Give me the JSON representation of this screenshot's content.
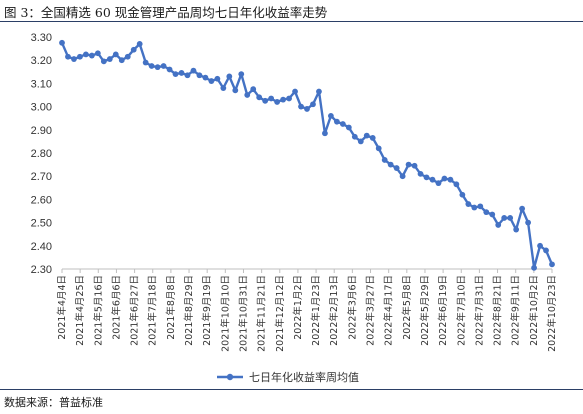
{
  "header": {
    "title": "图 3：全国精选 60 现金管理产品周均七日年化收益率走势"
  },
  "footer": {
    "source": "数据来源：普益标准"
  },
  "colors": {
    "series": "#4472C4",
    "rule": "#2b3f66",
    "axis": "#bfbfbf"
  },
  "chart_data": {
    "type": "line",
    "title": "",
    "xlabel": "",
    "ylabel": "",
    "ylim": [
      2.3,
      3.3
    ],
    "yticks": [
      2.3,
      2.4,
      2.5,
      2.6,
      2.7,
      2.8,
      2.9,
      3.0,
      3.1,
      3.2,
      3.3
    ],
    "ytick_labels": [
      "2.30",
      "2.40",
      "2.50",
      "2.60",
      "2.70",
      "2.80",
      "2.90",
      "3.00",
      "3.10",
      "3.20",
      "3.30"
    ],
    "grid": false,
    "legend_position": "bottom",
    "x_tick_labels": [
      "2021年4月4日",
      "2021年4月25日",
      "2021年5月16日",
      "2021年6月6日",
      "2021年6月27日",
      "2021年7月18日",
      "2021年8月8日",
      "2021年8月29日",
      "2021年9月19日",
      "2021年10月10日",
      "2021年10月31日",
      "2021年11月21日",
      "2021年12月12日",
      "2022年1月2日",
      "2022年1月23日",
      "2022年2月13日",
      "2022年3月6日",
      "2022年3月27日",
      "2022年4月17日",
      "2022年5月8日",
      "2022年5月29日",
      "2022年6月19日",
      "2022年7月10日",
      "2022年7月31日",
      "2022年8月21日",
      "2022年9月11日",
      "2022年10月2日",
      "2022年10月23日"
    ],
    "series": [
      {
        "name": "七日年化收益率周均值",
        "color": "#4472C4",
        "values": [
          3.275,
          3.215,
          3.205,
          3.215,
          3.225,
          3.22,
          3.23,
          3.195,
          3.205,
          3.225,
          3.2,
          3.215,
          3.245,
          3.27,
          3.19,
          3.175,
          3.17,
          3.175,
          3.16,
          3.14,
          3.145,
          3.135,
          3.155,
          3.135,
          3.125,
          3.11,
          3.12,
          3.08,
          3.13,
          3.07,
          3.14,
          3.05,
          3.075,
          3.04,
          3.025,
          3.035,
          3.02,
          3.03,
          3.035,
          3.065,
          3.0,
          2.99,
          3.01,
          3.065,
          2.885,
          2.96,
          2.935,
          2.925,
          2.91,
          2.87,
          2.85,
          2.875,
          2.865,
          2.82,
          2.77,
          2.75,
          2.735,
          2.7,
          2.75,
          2.745,
          2.71,
          2.695,
          2.685,
          2.67,
          2.69,
          2.685,
          2.665,
          2.62,
          2.58,
          2.565,
          2.57,
          2.545,
          2.535,
          2.49,
          2.52,
          2.52,
          2.47,
          2.56,
          2.5,
          2.305,
          2.4,
          2.38,
          2.32
        ]
      }
    ]
  }
}
